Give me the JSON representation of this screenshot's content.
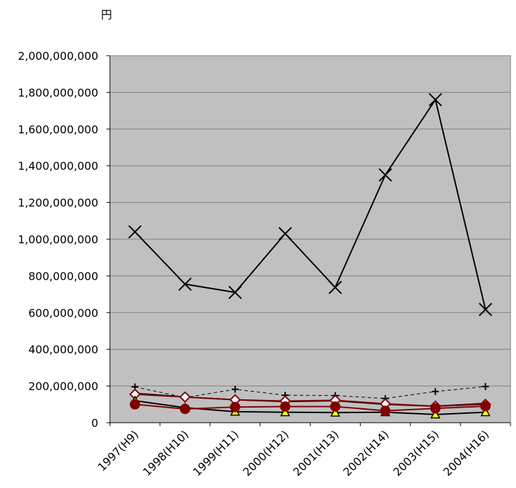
{
  "chart_data": {
    "type": "line",
    "unit_label": "円",
    "categories": [
      "1997(H9)",
      "1998(H10)",
      "1999(H11)",
      "2000(H12)",
      "2001(H13)",
      "2002(H14)",
      "2003(H15)",
      "2004(H16)"
    ],
    "ylim": [
      0,
      2000000000
    ],
    "yticks": [
      0,
      200000000,
      400000000,
      600000000,
      800000000,
      1000000000,
      1200000000,
      1400000000,
      1600000000,
      1800000000,
      2000000000
    ],
    "ytick_labels": [
      "0",
      "200,000,000",
      "400,000,000",
      "600,000,000",
      "800,000,000",
      "1,000,000,000",
      "1,200,000,000",
      "1,400,000,000",
      "1,600,000,000",
      "1,800,000,000",
      "2,000,000,000"
    ],
    "grid": true,
    "plot_background": "#c0c0c0",
    "series": [
      {
        "values": [
          1040000000,
          755000000,
          710000000,
          1030000000,
          737000000,
          1350000000,
          1760000000,
          617000000
        ],
        "color": "#000000",
        "marker": "x",
        "dash": false
      },
      {
        "values": [
          195000000,
          137000000,
          182000000,
          150000000,
          148000000,
          132000000,
          170000000,
          197000000
        ],
        "color": "#000000",
        "marker": "plus",
        "dash": true
      },
      {
        "values": [
          160000000,
          140000000,
          125000000,
          115000000,
          120000000,
          100000000,
          90000000,
          105000000
        ],
        "color": "#000000",
        "marker": "none",
        "dash": false
      },
      {
        "values": [
          155000000,
          140000000,
          125000000,
          118000000,
          122000000,
          103000000,
          90000000,
          100000000
        ],
        "color": "#800000",
        "marker": "diamond",
        "dash": false
      },
      {
        "values": [
          120000000,
          82000000,
          60000000,
          57000000,
          55000000,
          57000000,
          45000000,
          57000000
        ],
        "color": "#000000",
        "marker": "triangle",
        "dash": false
      },
      {
        "values": [
          100000000,
          75000000,
          85000000,
          88000000,
          88000000,
          65000000,
          78000000,
          90000000
        ],
        "color": "#800000",
        "marker": "circle",
        "dash": false
      }
    ]
  }
}
